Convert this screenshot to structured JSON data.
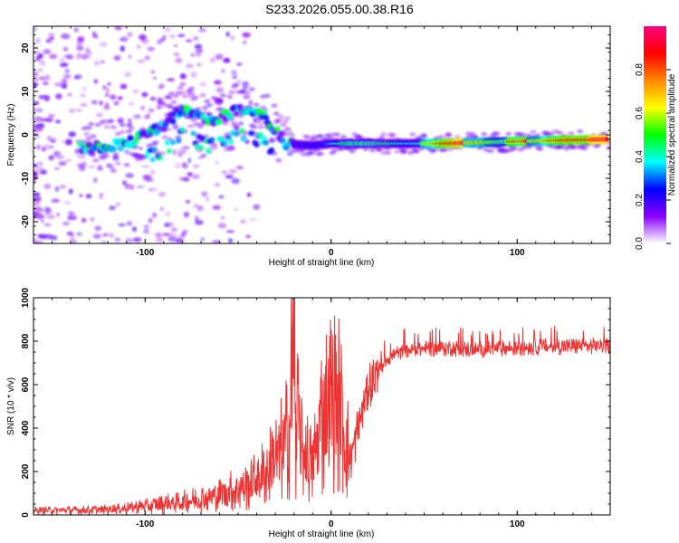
{
  "title": "S233.2026.055.00.38.R16",
  "chart_data": [
    {
      "type": "heatmap",
      "xlabel": "Height of straight line (km)",
      "ylabel": "Frequency (Hz)",
      "xlim": [
        -160,
        150
      ],
      "ylim": [
        -25,
        25
      ],
      "xticks": [
        -100,
        0,
        100
      ],
      "yticks": [
        -20,
        -10,
        0,
        10,
        20
      ],
      "ridge": [
        {
          "x": -130,
          "y": -3
        },
        {
          "x": -110,
          "y": -2
        },
        {
          "x": -90,
          "y": 2
        },
        {
          "x": -80,
          "y": 6
        },
        {
          "x": -65,
          "y": 3
        },
        {
          "x": -50,
          "y": 6
        },
        {
          "x": -35,
          "y": 4
        },
        {
          "x": -25,
          "y": -2
        },
        {
          "x": -10,
          "y": -2.5
        },
        {
          "x": 0,
          "y": -2
        },
        {
          "x": 25,
          "y": -2
        },
        {
          "x": 60,
          "y": -2
        },
        {
          "x": 100,
          "y": -1.5
        },
        {
          "x": 150,
          "y": -1
        }
      ],
      "colorbar": {
        "label": "Normalized spectral amplitude",
        "range": [
          0,
          1
        ],
        "ticks": [
          0.0,
          0.2,
          0.4,
          0.6,
          0.8
        ],
        "tick_labels": [
          "0.0",
          "0.2",
          "0.4",
          "0.6",
          "0.8"
        ],
        "colors": [
          "#ffffff",
          "#8800ff",
          "#0000ff",
          "#00ffff",
          "#00ff00",
          "#ffff00",
          "#ff8800",
          "#ff0000",
          "#ff0080"
        ]
      }
    },
    {
      "type": "line",
      "xlabel": "Height of straight line (km)",
      "ylabel": "SNR (10 * v/v)",
      "xlim": [
        -160,
        150
      ],
      "ylim": [
        0,
        1000
      ],
      "xticks": [
        -100,
        0,
        100
      ],
      "yticks": [
        0,
        200,
        400,
        600,
        800,
        1000
      ],
      "color": "#ee3333",
      "series": [
        {
          "name": "SNR",
          "x": [
            -160,
            -120,
            -100,
            -80,
            -60,
            -45,
            -35,
            -25,
            -20,
            -15,
            -10,
            -5,
            0,
            5,
            10,
            15,
            20,
            25,
            30,
            40,
            60,
            80,
            100,
            120,
            150
          ],
          "y": [
            20,
            25,
            40,
            60,
            90,
            140,
            200,
            320,
            500,
            300,
            220,
            450,
            530,
            500,
            250,
            420,
            600,
            660,
            720,
            760,
            770,
            760,
            770,
            775,
            780
          ]
        }
      ]
    }
  ]
}
